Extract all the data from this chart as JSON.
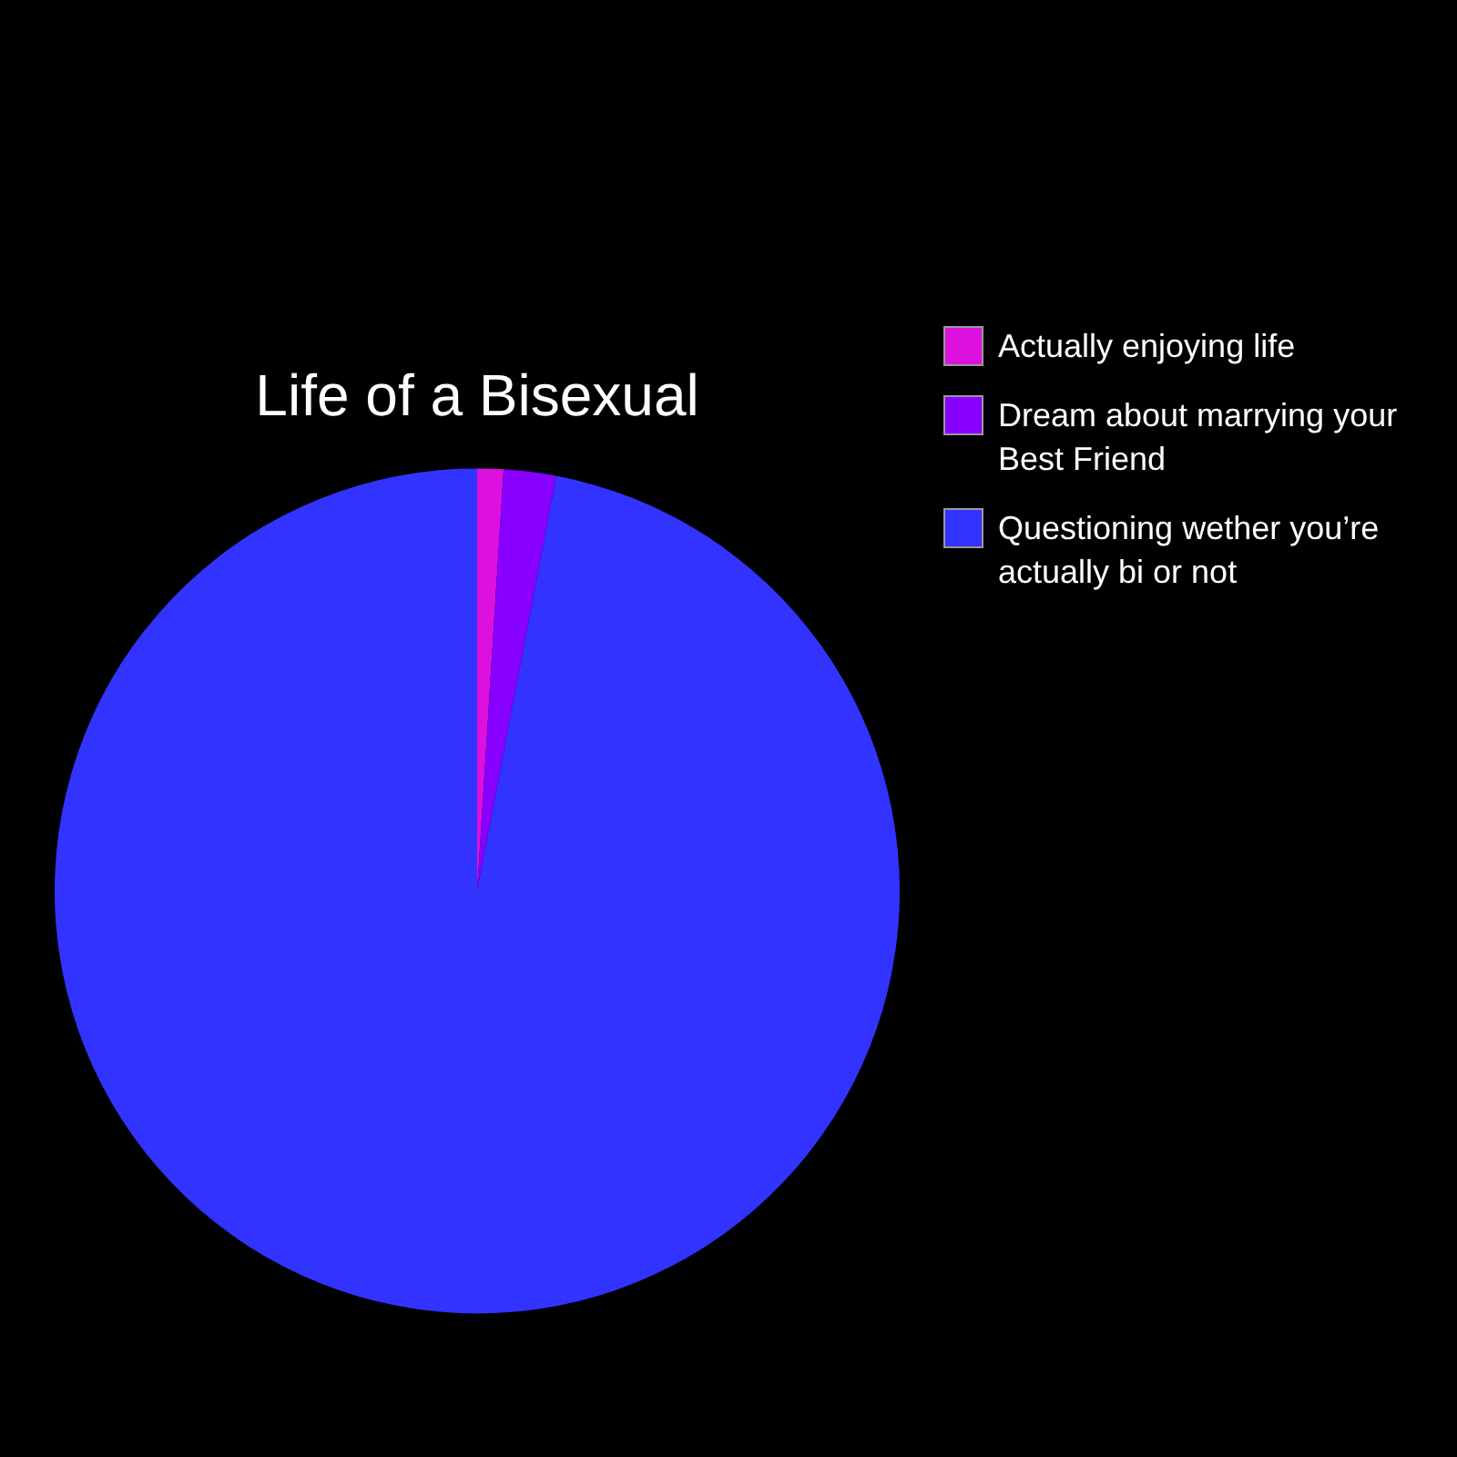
{
  "chart_data": {
    "type": "pie",
    "title": "Life of a Bisexual",
    "categories": [
      "Actually enjoying life",
      "Dream about marrying your Best Friend",
      "Questioning wether you’re actually bi or not"
    ],
    "values": [
      1,
      2,
      97
    ],
    "colors": [
      "#dd11dd",
      "#8800ff",
      "#3333ff"
    ],
    "legend": "top right"
  }
}
